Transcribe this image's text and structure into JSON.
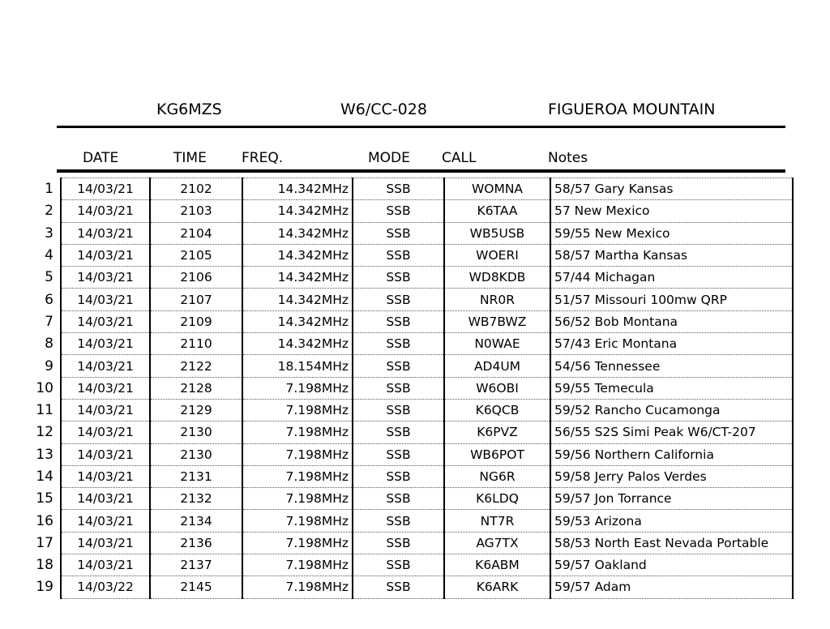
{
  "header": {
    "operator": "KG6MZS",
    "summit_ref": "W6/CC-028",
    "summit_name": "FIGUEROA MOUNTAIN"
  },
  "columns": {
    "date": "DATE",
    "time": "TIME",
    "freq": "FREQ.",
    "mode": "MODE",
    "call": "CALL",
    "notes": "Notes"
  },
  "rows": [
    {
      "n": "1",
      "date": "14/03/21",
      "time": "2102",
      "freq": "14.342MHz",
      "mode": "SSB",
      "call": "WOMNA",
      "notes": "58/57 Gary Kansas"
    },
    {
      "n": "2",
      "date": "14/03/21",
      "time": "2103",
      "freq": "14.342MHz",
      "mode": "SSB",
      "call": "K6TAA",
      "notes": "57 New Mexico"
    },
    {
      "n": "3",
      "date": "14/03/21",
      "time": "2104",
      "freq": "14.342MHz",
      "mode": "SSB",
      "call": "WB5USB",
      "notes": "59/55 New Mexico"
    },
    {
      "n": "4",
      "date": "14/03/21",
      "time": "2105",
      "freq": "14.342MHz",
      "mode": "SSB",
      "call": "WOERI",
      "notes": "58/57 Martha Kansas"
    },
    {
      "n": "5",
      "date": "14/03/21",
      "time": "2106",
      "freq": "14.342MHz",
      "mode": "SSB",
      "call": "WD8KDB",
      "notes": "57/44 Michagan"
    },
    {
      "n": "6",
      "date": "14/03/21",
      "time": "2107",
      "freq": "14.342MHz",
      "mode": "SSB",
      "call": "NR0R",
      "notes": "51/57 Missouri 100mw QRP"
    },
    {
      "n": "7",
      "date": "14/03/21",
      "time": "2109",
      "freq": "14.342MHz",
      "mode": "SSB",
      "call": "WB7BWZ",
      "notes": "56/52 Bob Montana"
    },
    {
      "n": "8",
      "date": "14/03/21",
      "time": "2110",
      "freq": "14.342MHz",
      "mode": "SSB",
      "call": "N0WAE",
      "notes": "57/43 Eric Montana"
    },
    {
      "n": "9",
      "date": "14/03/21",
      "time": "2122",
      "freq": "18.154MHz",
      "mode": "SSB",
      "call": "AD4UM",
      "notes": "54/56 Tennessee"
    },
    {
      "n": "10",
      "date": "14/03/21",
      "time": "2128",
      "freq": "7.198MHz",
      "mode": "SSB",
      "call": "W6OBI",
      "notes": "59/55 Temecula"
    },
    {
      "n": "11",
      "date": "14/03/21",
      "time": "2129",
      "freq": "7.198MHz",
      "mode": "SSB",
      "call": "K6QCB",
      "notes": "59/52 Rancho Cucamonga"
    },
    {
      "n": "12",
      "date": "14/03/21",
      "time": "2130",
      "freq": "7.198MHz",
      "mode": "SSB",
      "call": "K6PVZ",
      "notes": "56/55 S2S Simi Peak W6/CT-207"
    },
    {
      "n": "13",
      "date": "14/03/21",
      "time": "2130",
      "freq": "7.198MHz",
      "mode": "SSB",
      "call": "WB6POT",
      "notes": "59/56 Northern California"
    },
    {
      "n": "14",
      "date": "14/03/21",
      "time": "2131",
      "freq": "7.198MHz",
      "mode": "SSB",
      "call": "NG6R",
      "notes": "59/58 Jerry Palos Verdes"
    },
    {
      "n": "15",
      "date": "14/03/21",
      "time": "2132",
      "freq": "7.198MHz",
      "mode": "SSB",
      "call": "K6LDQ",
      "notes": "59/57 Jon Torrance"
    },
    {
      "n": "16",
      "date": "14/03/21",
      "time": "2134",
      "freq": "7.198MHz",
      "mode": "SSB",
      "call": "NT7R",
      "notes": "59/53 Arizona"
    },
    {
      "n": "17",
      "date": "14/03/21",
      "time": "2136",
      "freq": "7.198MHz",
      "mode": "SSB",
      "call": "AG7TX",
      "notes": "58/53 North East Nevada Portable"
    },
    {
      "n": "18",
      "date": "14/03/21",
      "time": "2137",
      "freq": "7.198MHz",
      "mode": "SSB",
      "call": "K6ABM",
      "notes": "59/57 Oakland"
    },
    {
      "n": "19",
      "date": "14/03/22",
      "time": "2145",
      "freq": "7.198MHz",
      "mode": "SSB",
      "call": "K6ARK",
      "notes": "59/57 Adam"
    }
  ]
}
